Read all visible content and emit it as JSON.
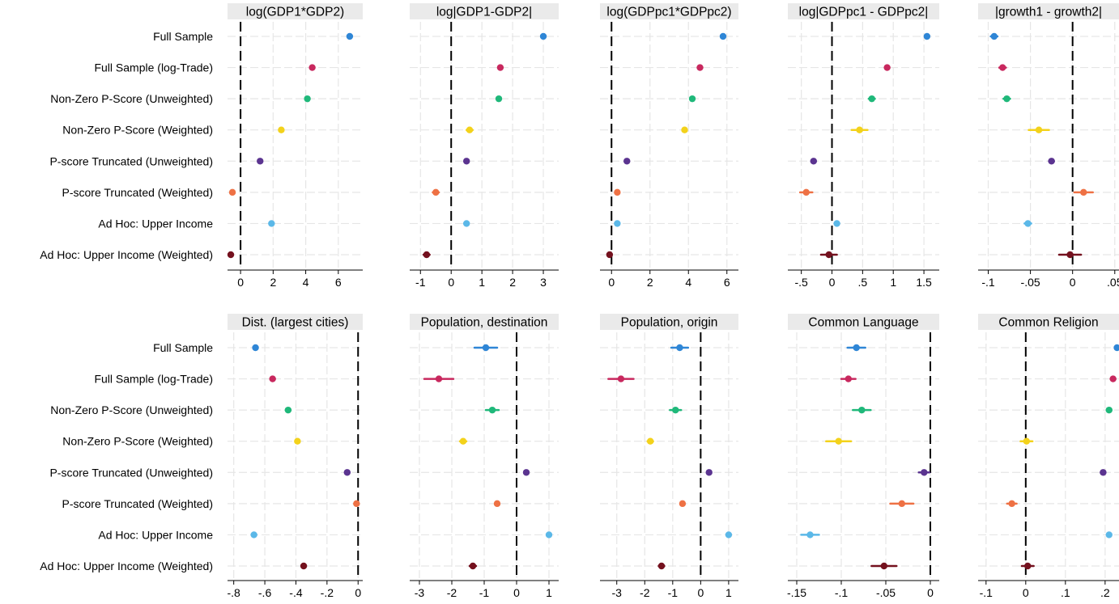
{
  "rows": [
    "Full Sample",
    "Full Sample (log-Trade)",
    "Non-Zero P-Score (Unweighted)",
    "Non-Zero P-Score (Weighted)",
    "P-score Truncated (Unweighted)",
    "P-score Truncated (Weighted)",
    "Ad Hoc: Upper Income",
    "Ad Hoc: Upper Income (Weighted)"
  ],
  "colors": [
    "#2f86d6",
    "#c8285e",
    "#1fb87a",
    "#f3d21b",
    "#5b3490",
    "#ee7144",
    "#5bb8e8",
    "#74111e"
  ],
  "chart_data": [
    {
      "type": "scatter",
      "title": "log(GDP1*GDP2)",
      "xlim": [
        -0.8,
        7.5
      ],
      "ticks": [
        {
          "v": 0,
          "label": "0"
        },
        {
          "v": 2,
          "label": "2"
        },
        {
          "v": 4,
          "label": "4"
        },
        {
          "v": 6,
          "label": "6"
        }
      ],
      "zero_line": 0,
      "series": [
        {
          "label": "Full Sample",
          "value": 6.7,
          "ci": [
            6.6,
            6.8
          ]
        },
        {
          "label": "Full Sample (log-Trade)",
          "value": 4.4,
          "ci": [
            4.3,
            4.5
          ]
        },
        {
          "label": "Non-Zero P-Score (Unweighted)",
          "value": 4.1,
          "ci": [
            4.0,
            4.2
          ]
        },
        {
          "label": "Non-Zero P-Score (Weighted)",
          "value": 2.5,
          "ci": [
            2.4,
            2.6
          ]
        },
        {
          "label": "P-score Truncated (Unweighted)",
          "value": 1.2,
          "ci": [
            1.1,
            1.3
          ]
        },
        {
          "label": "P-score Truncated (Weighted)",
          "value": -0.5,
          "ci": [
            -0.6,
            -0.4
          ]
        },
        {
          "label": "Ad Hoc: Upper Income",
          "value": 1.9,
          "ci": [
            1.8,
            2.0
          ]
        },
        {
          "label": "Ad Hoc: Upper Income (Weighted)",
          "value": -0.6,
          "ci": [
            -0.7,
            -0.5
          ]
        }
      ]
    },
    {
      "type": "scatter",
      "title": "log|GDP1-GDP2|",
      "xlim": [
        -1.35,
        3.5
      ],
      "ticks": [
        {
          "v": -1,
          "label": "-1"
        },
        {
          "v": 0,
          "label": "0"
        },
        {
          "v": 1,
          "label": "1"
        },
        {
          "v": 2,
          "label": "2"
        },
        {
          "v": 3,
          "label": "3"
        }
      ],
      "zero_line": 0,
      "series": [
        {
          "label": "Full Sample",
          "value": 3.0,
          "ci": [
            2.95,
            3.05
          ]
        },
        {
          "label": "Full Sample (log-Trade)",
          "value": 1.6,
          "ci": [
            1.55,
            1.65
          ]
        },
        {
          "label": "Non-Zero P-Score (Unweighted)",
          "value": 1.55,
          "ci": [
            1.5,
            1.6
          ]
        },
        {
          "label": "Non-Zero P-Score (Weighted)",
          "value": 0.6,
          "ci": [
            0.5,
            0.7
          ]
        },
        {
          "label": "P-score Truncated (Unweighted)",
          "value": 0.5,
          "ci": [
            0.45,
            0.55
          ]
        },
        {
          "label": "P-score Truncated (Weighted)",
          "value": -0.5,
          "ci": [
            -0.6,
            -0.4
          ]
        },
        {
          "label": "Ad Hoc: Upper Income",
          "value": 0.5,
          "ci": [
            0.45,
            0.55
          ]
        },
        {
          "label": "Ad Hoc: Upper Income (Weighted)",
          "value": -0.8,
          "ci": [
            -0.9,
            -0.7
          ]
        }
      ]
    },
    {
      "type": "scatter",
      "title": "log(GDPpc1*GDPpc2)",
      "xlim": [
        -0.6,
        6.6
      ],
      "ticks": [
        {
          "v": 0,
          "label": "0"
        },
        {
          "v": 2,
          "label": "2"
        },
        {
          "v": 4,
          "label": "4"
        },
        {
          "v": 6,
          "label": "6"
        }
      ],
      "zero_line": 0,
      "series": [
        {
          "label": "Full Sample",
          "value": 5.8,
          "ci": [
            5.7,
            5.9
          ]
        },
        {
          "label": "Full Sample (log-Trade)",
          "value": 4.6,
          "ci": [
            4.5,
            4.7
          ]
        },
        {
          "label": "Non-Zero P-Score (Unweighted)",
          "value": 4.2,
          "ci": [
            4.1,
            4.3
          ]
        },
        {
          "label": "Non-Zero P-Score (Weighted)",
          "value": 3.8,
          "ci": [
            3.7,
            3.9
          ]
        },
        {
          "label": "P-score Truncated (Unweighted)",
          "value": 0.8,
          "ci": [
            0.7,
            0.9
          ]
        },
        {
          "label": "P-score Truncated (Weighted)",
          "value": 0.3,
          "ci": [
            0.2,
            0.4
          ]
        },
        {
          "label": "Ad Hoc: Upper Income",
          "value": 0.3,
          "ci": [
            0.2,
            0.4
          ]
        },
        {
          "label": "Ad Hoc: Upper Income (Weighted)",
          "value": -0.1,
          "ci": [
            -0.2,
            0.0
          ]
        }
      ]
    },
    {
      "type": "scatter",
      "title": "log|GDPpc1 - GDPpc2|",
      "xlim": [
        -0.72,
        1.75
      ],
      "ticks": [
        {
          "v": -0.5,
          "label": "-.5"
        },
        {
          "v": 0,
          "label": "0"
        },
        {
          "v": 0.5,
          "label": ".5"
        },
        {
          "v": 1,
          "label": "1"
        },
        {
          "v": 1.5,
          "label": "1.5"
        }
      ],
      "zero_line": 0,
      "series": [
        {
          "label": "Full Sample",
          "value": 1.55,
          "ci": [
            1.52,
            1.58
          ]
        },
        {
          "label": "Full Sample (log-Trade)",
          "value": 0.9,
          "ci": [
            0.87,
            0.93
          ]
        },
        {
          "label": "Non-Zero P-Score (Unweighted)",
          "value": 0.65,
          "ci": [
            0.6,
            0.7
          ]
        },
        {
          "label": "Non-Zero P-Score (Weighted)",
          "value": 0.45,
          "ci": [
            0.32,
            0.58
          ]
        },
        {
          "label": "P-score Truncated (Unweighted)",
          "value": -0.3,
          "ci": [
            -0.34,
            -0.26
          ]
        },
        {
          "label": "P-score Truncated (Weighted)",
          "value": -0.42,
          "ci": [
            -0.52,
            -0.32
          ]
        },
        {
          "label": "Ad Hoc: Upper Income",
          "value": 0.08,
          "ci": [
            0.05,
            0.11
          ]
        },
        {
          "label": "Ad Hoc: Upper Income (Weighted)",
          "value": -0.05,
          "ci": [
            -0.18,
            0.08
          ]
        }
      ]
    },
    {
      "type": "scatter",
      "title": "|growth1 - growth2|",
      "xlim": [
        -0.112,
        0.055
      ],
      "ticks": [
        {
          "v": -0.1,
          "label": "-.1"
        },
        {
          "v": -0.05,
          "label": "-.05"
        },
        {
          "v": 0,
          "label": "0"
        },
        {
          "v": 0.05,
          "label": ".05"
        }
      ],
      "zero_line": 0,
      "series": [
        {
          "label": "Full Sample",
          "value": -0.093,
          "ci": [
            -0.097,
            -0.089
          ]
        },
        {
          "label": "Full Sample (log-Trade)",
          "value": -0.083,
          "ci": [
            -0.087,
            -0.079
          ]
        },
        {
          "label": "Non-Zero P-Score (Unweighted)",
          "value": -0.078,
          "ci": [
            -0.082,
            -0.074
          ]
        },
        {
          "label": "Non-Zero P-Score (Weighted)",
          "value": -0.04,
          "ci": [
            -0.052,
            -0.028
          ]
        },
        {
          "label": "P-score Truncated (Unweighted)",
          "value": -0.025,
          "ci": [
            -0.028,
            -0.022
          ]
        },
        {
          "label": "P-score Truncated (Weighted)",
          "value": 0.013,
          "ci": [
            0.002,
            0.024
          ]
        },
        {
          "label": "Ad Hoc: Upper Income",
          "value": -0.053,
          "ci": [
            -0.057,
            -0.049
          ]
        },
        {
          "label": "Ad Hoc: Upper Income (Weighted)",
          "value": -0.003,
          "ci": [
            -0.016,
            0.01
          ]
        }
      ]
    },
    {
      "type": "scatter",
      "title": "Dist. (largest cities)",
      "xlim": [
        -0.84,
        0.03
      ],
      "ticks": [
        {
          "v": -0.8,
          "label": "-.8"
        },
        {
          "v": -0.6,
          "label": "-.6"
        },
        {
          "v": -0.4,
          "label": "-.4"
        },
        {
          "v": -0.2,
          "label": "-.2"
        },
        {
          "v": 0,
          "label": "0"
        }
      ],
      "zero_line": 0,
      "series": [
        {
          "label": "Full Sample",
          "value": -0.66,
          "ci": [
            -0.675,
            -0.645
          ]
        },
        {
          "label": "Full Sample (log-Trade)",
          "value": -0.55,
          "ci": [
            -0.565,
            -0.535
          ]
        },
        {
          "label": "Non-Zero P-Score (Unweighted)",
          "value": -0.45,
          "ci": [
            -0.465,
            -0.435
          ]
        },
        {
          "label": "Non-Zero P-Score (Weighted)",
          "value": -0.39,
          "ci": [
            -0.405,
            -0.375
          ]
        },
        {
          "label": "P-score Truncated (Unweighted)",
          "value": -0.07,
          "ci": [
            -0.085,
            -0.055
          ]
        },
        {
          "label": "P-score Truncated (Weighted)",
          "value": -0.01,
          "ci": [
            -0.025,
            0.005
          ]
        },
        {
          "label": "Ad Hoc: Upper Income",
          "value": -0.67,
          "ci": [
            -0.685,
            -0.655
          ]
        },
        {
          "label": "Ad Hoc: Upper Income (Weighted)",
          "value": -0.35,
          "ci": [
            -0.365,
            -0.335
          ]
        }
      ]
    },
    {
      "type": "scatter",
      "title": "Population, destination",
      "xlim": [
        -3.3,
        1.3
      ],
      "ticks": [
        {
          "v": -3,
          "label": "-3"
        },
        {
          "v": -2,
          "label": "-2"
        },
        {
          "v": -1,
          "label": "-1"
        },
        {
          "v": 0,
          "label": "0"
        },
        {
          "v": 1,
          "label": "1"
        }
      ],
      "zero_line": 0,
      "series": [
        {
          "label": "Full Sample",
          "value": -0.95,
          "ci": [
            -1.3,
            -0.6
          ]
        },
        {
          "label": "Full Sample (log-Trade)",
          "value": -2.4,
          "ci": [
            -2.85,
            -1.95
          ]
        },
        {
          "label": "Non-Zero P-Score (Unweighted)",
          "value": -0.75,
          "ci": [
            -0.95,
            -0.55
          ]
        },
        {
          "label": "Non-Zero P-Score (Weighted)",
          "value": -1.65,
          "ci": [
            -1.75,
            -1.55
          ]
        },
        {
          "label": "P-score Truncated (Unweighted)",
          "value": 0.3,
          "ci": [
            0.25,
            0.35
          ]
        },
        {
          "label": "P-score Truncated (Weighted)",
          "value": -0.6,
          "ci": [
            -0.67,
            -0.53
          ]
        },
        {
          "label": "Ad Hoc: Upper Income",
          "value": 1.0,
          "ci": [
            0.95,
            1.05
          ]
        },
        {
          "label": "Ad Hoc: Upper Income (Weighted)",
          "value": -1.35,
          "ci": [
            -1.45,
            -1.25
          ]
        }
      ]
    },
    {
      "type": "scatter",
      "title": "Population, origin",
      "xlim": [
        -3.6,
        1.35
      ],
      "ticks": [
        {
          "v": -3,
          "label": "-3"
        },
        {
          "v": -2,
          "label": "-2"
        },
        {
          "v": -1,
          "label": "-1"
        },
        {
          "v": 0,
          "label": "0"
        },
        {
          "v": 1,
          "label": "1"
        }
      ],
      "zero_line": 0,
      "series": [
        {
          "label": "Full Sample",
          "value": -0.75,
          "ci": [
            -1.05,
            -0.45
          ]
        },
        {
          "label": "Full Sample (log-Trade)",
          "value": -2.85,
          "ci": [
            -3.3,
            -2.4
          ]
        },
        {
          "label": "Non-Zero P-Score (Unweighted)",
          "value": -0.9,
          "ci": [
            -1.1,
            -0.7
          ]
        },
        {
          "label": "Non-Zero P-Score (Weighted)",
          "value": -1.8,
          "ci": [
            -1.9,
            -1.7
          ]
        },
        {
          "label": "P-score Truncated (Unweighted)",
          "value": 0.3,
          "ci": [
            0.24,
            0.36
          ]
        },
        {
          "label": "P-score Truncated (Weighted)",
          "value": -0.65,
          "ci": [
            -0.72,
            -0.58
          ]
        },
        {
          "label": "Ad Hoc: Upper Income",
          "value": 1.0,
          "ci": [
            0.95,
            1.05
          ]
        },
        {
          "label": "Ad Hoc: Upper Income (Weighted)",
          "value": -1.4,
          "ci": [
            -1.5,
            -1.3
          ]
        }
      ]
    },
    {
      "type": "scatter",
      "title": "Common Language",
      "xlim": [
        -0.16,
        0.01
      ],
      "ticks": [
        {
          "v": -0.15,
          "label": "-.15"
        },
        {
          "v": -0.1,
          "label": "-.1"
        },
        {
          "v": -0.05,
          "label": "-.05"
        },
        {
          "v": 0,
          "label": "0"
        }
      ],
      "zero_line": 0,
      "series": [
        {
          "label": "Full Sample",
          "value": -0.083,
          "ci": [
            -0.093,
            -0.073
          ]
        },
        {
          "label": "Full Sample (log-Trade)",
          "value": -0.092,
          "ci": [
            -0.1,
            -0.084
          ]
        },
        {
          "label": "Non-Zero P-Score (Unweighted)",
          "value": -0.077,
          "ci": [
            -0.087,
            -0.067
          ]
        },
        {
          "label": "Non-Zero P-Score (Weighted)",
          "value": -0.103,
          "ci": [
            -0.117,
            -0.089
          ]
        },
        {
          "label": "P-score Truncated (Unweighted)",
          "value": -0.007,
          "ci": [
            -0.013,
            -0.001
          ]
        },
        {
          "label": "P-score Truncated (Weighted)",
          "value": -0.032,
          "ci": [
            -0.045,
            -0.019
          ]
        },
        {
          "label": "Ad Hoc: Upper Income",
          "value": -0.135,
          "ci": [
            -0.145,
            -0.125
          ]
        },
        {
          "label": "Ad Hoc: Upper Income (Weighted)",
          "value": -0.052,
          "ci": [
            -0.066,
            -0.038
          ]
        }
      ]
    },
    {
      "type": "scatter",
      "title": "Common Religion",
      "xlim": [
        -0.12,
        0.235
      ],
      "ticks": [
        {
          "v": -0.1,
          "label": "-.1"
        },
        {
          "v": 0,
          "label": "0"
        },
        {
          "v": 0.1,
          "label": ".1"
        },
        {
          "v": 0.2,
          "label": ".2"
        }
      ],
      "zero_line": 0,
      "series": [
        {
          "label": "Full Sample",
          "value": 0.23,
          "ci": [
            0.225,
            0.235
          ]
        },
        {
          "label": "Full Sample (log-Trade)",
          "value": 0.22,
          "ci": [
            0.214,
            0.226
          ]
        },
        {
          "label": "Non-Zero P-Score (Unweighted)",
          "value": 0.21,
          "ci": [
            0.204,
            0.216
          ]
        },
        {
          "label": "Non-Zero P-Score (Weighted)",
          "value": 0.002,
          "ci": [
            -0.013,
            0.017
          ]
        },
        {
          "label": "P-score Truncated (Unweighted)",
          "value": 0.195,
          "ci": [
            0.189,
            0.201
          ]
        },
        {
          "label": "P-score Truncated (Weighted)",
          "value": -0.035,
          "ci": [
            -0.047,
            -0.023
          ]
        },
        {
          "label": "Ad Hoc: Upper Income",
          "value": 0.21,
          "ci": [
            0.205,
            0.215
          ]
        },
        {
          "label": "Ad Hoc: Upper Income (Weighted)",
          "value": 0.005,
          "ci": [
            -0.01,
            0.02
          ]
        }
      ]
    }
  ]
}
